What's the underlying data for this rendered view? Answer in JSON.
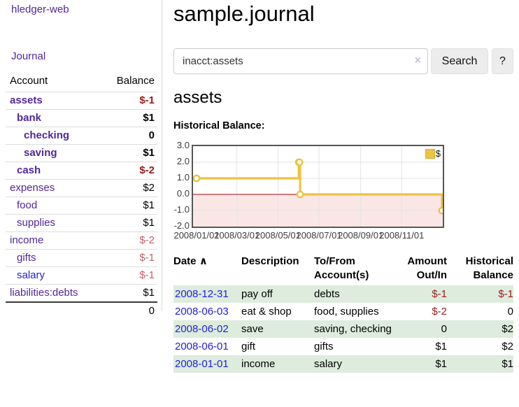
{
  "brand": "hledger-web",
  "nav": {
    "journal": "Journal"
  },
  "sidebar": {
    "headers": {
      "account": "Account",
      "balance": "Balance"
    },
    "rows": [
      {
        "account": "assets",
        "balance": "$-1",
        "indent": 0,
        "bold": true,
        "acct": "purple",
        "bal": "negdark"
      },
      {
        "account": "bank",
        "balance": "$1",
        "indent": 1,
        "bold": true,
        "acct": "purple",
        "bal": ""
      },
      {
        "account": "checking",
        "balance": "0",
        "indent": 2,
        "bold": true,
        "acct": "purple",
        "bal": ""
      },
      {
        "account": "saving",
        "balance": "$1",
        "indent": 2,
        "bold": true,
        "acct": "purple",
        "bal": ""
      },
      {
        "account": "cash",
        "balance": "$-2",
        "indent": 1,
        "bold": true,
        "acct": "purple",
        "bal": "negdark"
      },
      {
        "account": "expenses",
        "balance": "$2",
        "indent": 0,
        "bold": false,
        "acct": "purple",
        "bal": ""
      },
      {
        "account": "food",
        "balance": "$1",
        "indent": 1,
        "bold": false,
        "acct": "purple",
        "bal": ""
      },
      {
        "account": "supplies",
        "balance": "$1",
        "indent": 1,
        "bold": false,
        "acct": "purple",
        "bal": ""
      },
      {
        "account": "income",
        "balance": "$-2",
        "indent": 0,
        "bold": false,
        "acct": "purple",
        "bal": "negsoft"
      },
      {
        "account": "gifts",
        "balance": "$-1",
        "indent": 1,
        "bold": false,
        "acct": "purple",
        "bal": "negsoft"
      },
      {
        "account": "salary",
        "balance": "$-1",
        "indent": 1,
        "bold": false,
        "acct": "blue",
        "bal": "negsoft"
      },
      {
        "account": "liabilities:debts",
        "balance": "$1",
        "indent": 0,
        "bold": false,
        "acct": "purple",
        "bal": ""
      }
    ],
    "total": "0"
  },
  "main": {
    "title": "sample.journal",
    "search": {
      "value": "inacct:assets",
      "clear_icon": "×",
      "search_button": "Search",
      "help_button": "?"
    },
    "account_title": "assets",
    "chart_heading": "Historical Balance:"
  },
  "chart_data": {
    "type": "line",
    "steps": true,
    "title": "Historical Balance:",
    "series": [
      {
        "name": "$",
        "color": "#ecc342",
        "points": [
          [
            "2008-01-01",
            1
          ],
          [
            "2008-06-01",
            2
          ],
          [
            "2008-06-02",
            2
          ],
          [
            "2008-06-03",
            0
          ],
          [
            "2008-12-31",
            -1
          ]
        ]
      }
    ],
    "x_start": "2008-01-01",
    "x_range_days": 365,
    "x_tick_labels": [
      "2008/01/01",
      "2008/03/01",
      "2008/05/01",
      "2008/07/01",
      "2008/09/01",
      "2008/11/01"
    ],
    "x_tick_days": [
      0,
      60,
      121,
      182,
      244,
      305
    ],
    "y_tick_labels": [
      "3.0",
      "2.0",
      "1.0",
      "0.0",
      "-1.0",
      "-2.0"
    ],
    "y_tick_values": [
      3,
      2,
      1,
      0,
      -1,
      -2
    ],
    "ylim": [
      -2,
      3
    ],
    "grid": true,
    "grid_color": "#e3e3e3",
    "zero_line_color": "#a40000",
    "negative_region_fill": "#fbe6e6",
    "legend": {
      "label": "$",
      "position": "top-right"
    }
  },
  "register": {
    "headers": {
      "date": "Date",
      "sort_indicator": "∧",
      "description": "Description",
      "tofrom": [
        "To/From",
        "Account(s)"
      ],
      "amount": [
        "Amount",
        "Out/In"
      ],
      "balance": [
        "Historical",
        "Balance"
      ]
    },
    "rows": [
      {
        "date": "2008-12-31",
        "description": "pay off",
        "accounts": "debts",
        "amount": "$-1",
        "amount_negative": true,
        "balance": "$-1",
        "balance_negative": true,
        "shaded": true
      },
      {
        "date": "2008-06-03",
        "description": "eat & shop",
        "accounts": "food, supplies",
        "amount": "$-2",
        "amount_negative": true,
        "balance": "0",
        "balance_negative": false,
        "shaded": false
      },
      {
        "date": "2008-06-02",
        "description": "save",
        "accounts": "saving, checking",
        "amount": "0",
        "amount_negative": false,
        "balance": "$2",
        "balance_negative": false,
        "shaded": true
      },
      {
        "date": "2008-06-01",
        "description": "gift",
        "accounts": "gifts",
        "amount": "$1",
        "amount_negative": false,
        "balance": "$2",
        "balance_negative": false,
        "shaded": false
      },
      {
        "date": "2008-01-01",
        "description": "income",
        "accounts": "salary",
        "amount": "$1",
        "amount_negative": false,
        "balance": "$1",
        "balance_negative": false,
        "shaded": true
      }
    ]
  }
}
